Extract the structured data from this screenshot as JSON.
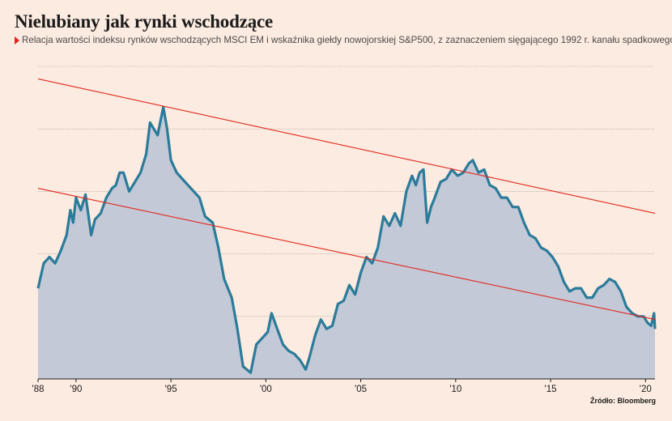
{
  "header": {
    "title": "Nielubiany jak rynki wschodzące",
    "subtitle": "Relacja wartości indeksu rynków wschodzących MSCI EM i wskaźnika giełdy nowojorskiej S&P500, z zaznaczeniem sięgającego 1992 r. kanału spadkowego"
  },
  "footer": {
    "source": "Źródło: Bloomberg"
  },
  "colors": {
    "background": "#fcebe0",
    "line": "#2b7b9a",
    "area": "#c4c9d7",
    "trend": "#e1261c",
    "grid": "#9a9a9a",
    "marker": "#e1261c"
  },
  "chart_data": {
    "type": "area",
    "title": "Nielubiany jak rynki wschodzące",
    "xlabel": "",
    "ylabel": "",
    "x_tick_labels": [
      "'88",
      "'90",
      "'95",
      "'00",
      "'05",
      "'10",
      "'15",
      "'20"
    ],
    "x_tick_years": [
      1988,
      1990,
      1995,
      2000,
      2005,
      2010,
      2015,
      2020
    ],
    "xlim": [
      1988,
      2020.5
    ],
    "ylim": [
      0,
      5
    ],
    "y_tick_labels": [],
    "gridlines_y": [
      1,
      2,
      3,
      4,
      5
    ],
    "grid": true,
    "legend": "none",
    "series": [
      {
        "values": [
          [
            1988.0,
            1.45
          ],
          [
            1988.3,
            1.85
          ],
          [
            1988.6,
            1.95
          ],
          [
            1988.9,
            1.85
          ],
          [
            1989.2,
            2.05
          ],
          [
            1989.5,
            2.3
          ],
          [
            1989.7,
            2.7
          ],
          [
            1989.85,
            2.5
          ],
          [
            1990.0,
            2.9
          ],
          [
            1990.25,
            2.7
          ],
          [
            1990.5,
            2.95
          ],
          [
            1990.8,
            2.3
          ],
          [
            1991.0,
            2.55
          ],
          [
            1991.3,
            2.65
          ],
          [
            1991.6,
            2.9
          ],
          [
            1991.9,
            3.05
          ],
          [
            1992.1,
            3.1
          ],
          [
            1992.3,
            3.3
          ],
          [
            1992.5,
            3.3
          ],
          [
            1992.8,
            3.0
          ],
          [
            1993.1,
            3.15
          ],
          [
            1993.4,
            3.3
          ],
          [
            1993.7,
            3.6
          ],
          [
            1993.9,
            4.1
          ],
          [
            1994.1,
            4.0
          ],
          [
            1994.3,
            3.9
          ],
          [
            1994.6,
            4.35
          ],
          [
            1994.8,
            4.0
          ],
          [
            1995.0,
            3.5
          ],
          [
            1995.3,
            3.3
          ],
          [
            1995.6,
            3.2
          ],
          [
            1995.9,
            3.1
          ],
          [
            1996.2,
            3.0
          ],
          [
            1996.5,
            2.9
          ],
          [
            1996.8,
            2.6
          ],
          [
            1997.2,
            2.5
          ],
          [
            1997.5,
            2.1
          ],
          [
            1997.8,
            1.6
          ],
          [
            1998.2,
            1.3
          ],
          [
            1998.5,
            0.8
          ],
          [
            1998.8,
            0.2
          ],
          [
            1999.2,
            0.1
          ],
          [
            1999.5,
            0.55
          ],
          [
            1999.8,
            0.65
          ],
          [
            2000.1,
            0.75
          ],
          [
            2000.3,
            1.05
          ],
          [
            2000.6,
            0.8
          ],
          [
            2000.9,
            0.55
          ],
          [
            2001.2,
            0.45
          ],
          [
            2001.5,
            0.4
          ],
          [
            2001.8,
            0.3
          ],
          [
            2002.1,
            0.15
          ],
          [
            2002.3,
            0.35
          ],
          [
            2002.6,
            0.7
          ],
          [
            2002.9,
            0.95
          ],
          [
            2003.2,
            0.8
          ],
          [
            2003.5,
            0.85
          ],
          [
            2003.8,
            1.2
          ],
          [
            2004.1,
            1.25
          ],
          [
            2004.4,
            1.5
          ],
          [
            2004.7,
            1.35
          ],
          [
            2005.0,
            1.7
          ],
          [
            2005.3,
            1.95
          ],
          [
            2005.6,
            1.85
          ],
          [
            2005.9,
            2.1
          ],
          [
            2006.2,
            2.6
          ],
          [
            2006.5,
            2.45
          ],
          [
            2006.8,
            2.65
          ],
          [
            2007.1,
            2.45
          ],
          [
            2007.4,
            3.0
          ],
          [
            2007.7,
            3.25
          ],
          [
            2007.9,
            3.1
          ],
          [
            2008.1,
            3.3
          ],
          [
            2008.3,
            3.35
          ],
          [
            2008.5,
            2.5
          ],
          [
            2008.7,
            2.75
          ],
          [
            2008.9,
            2.9
          ],
          [
            2009.2,
            3.15
          ],
          [
            2009.5,
            3.2
          ],
          [
            2009.8,
            3.35
          ],
          [
            2010.1,
            3.25
          ],
          [
            2010.4,
            3.3
          ],
          [
            2010.7,
            3.45
          ],
          [
            2010.9,
            3.5
          ],
          [
            2011.2,
            3.3
          ],
          [
            2011.5,
            3.35
          ],
          [
            2011.8,
            3.1
          ],
          [
            2012.1,
            3.05
          ],
          [
            2012.4,
            2.9
          ],
          [
            2012.7,
            2.9
          ],
          [
            2013.0,
            2.75
          ],
          [
            2013.3,
            2.75
          ],
          [
            2013.6,
            2.5
          ],
          [
            2013.9,
            2.3
          ],
          [
            2014.2,
            2.25
          ],
          [
            2014.5,
            2.1
          ],
          [
            2014.8,
            2.05
          ],
          [
            2015.1,
            1.95
          ],
          [
            2015.4,
            1.8
          ],
          [
            2015.7,
            1.55
          ],
          [
            2016.0,
            1.4
          ],
          [
            2016.3,
            1.45
          ],
          [
            2016.6,
            1.45
          ],
          [
            2016.9,
            1.3
          ],
          [
            2017.2,
            1.3
          ],
          [
            2017.5,
            1.45
          ],
          [
            2017.8,
            1.5
          ],
          [
            2018.1,
            1.6
          ],
          [
            2018.4,
            1.55
          ],
          [
            2018.7,
            1.4
          ],
          [
            2019.0,
            1.15
          ],
          [
            2019.3,
            1.05
          ],
          [
            2019.6,
            1.0
          ],
          [
            2019.9,
            1.0
          ],
          [
            2020.1,
            0.9
          ],
          [
            2020.3,
            0.85
          ],
          [
            2020.45,
            1.05
          ],
          [
            2020.5,
            0.8
          ]
        ]
      }
    ],
    "trend_lines": [
      {
        "from": [
          1988.0,
          4.8
        ],
        "to": [
          2020.5,
          2.65
        ]
      },
      {
        "from": [
          1988.0,
          3.05
        ],
        "to": [
          2020.5,
          0.95
        ]
      }
    ]
  }
}
